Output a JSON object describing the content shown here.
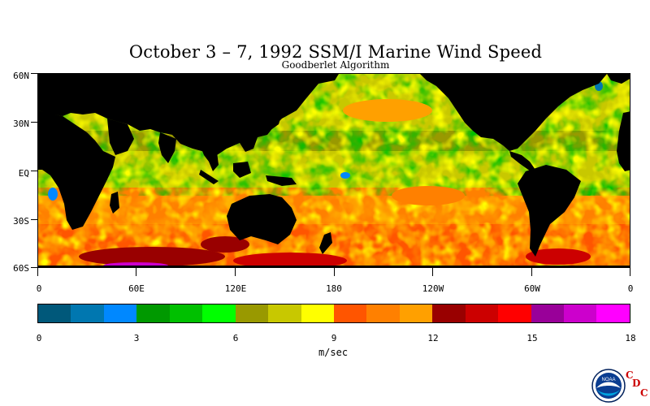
{
  "title": "October 3 – 7, 1992 SSM/I Marine Wind Speed",
  "subtitle": "Goodberlet Algorithm",
  "latitude_labels": [
    "60N",
    "30N",
    "EQ",
    "30S",
    "60S"
  ],
  "longitude_labels": [
    "0",
    "60E",
    "120E",
    "180",
    "120W",
    "60W",
    "0"
  ],
  "colorbar": {
    "colors": [
      "#00587a",
      "#0077b0",
      "#0088ff",
      "#009900",
      "#00c000",
      "#00ff00",
      "#999900",
      "#c8c800",
      "#ffff00",
      "#ff5500",
      "#ff8000",
      "#ffa000",
      "#990000",
      "#cc0000",
      "#ff0000",
      "#990099",
      "#cc00cc",
      "#ff00ff"
    ],
    "tick_labels": [
      "0",
      "3",
      "6",
      "9",
      "12",
      "15",
      "18"
    ],
    "units": "m/sec"
  },
  "map": {
    "land_color": "#000000",
    "lat_range": [
      -65,
      65
    ],
    "lon_range": [
      0,
      360
    ]
  },
  "logo": {
    "noaa_text": "NOAA",
    "cdc_letters": [
      "C",
      "D",
      "C"
    ]
  }
}
